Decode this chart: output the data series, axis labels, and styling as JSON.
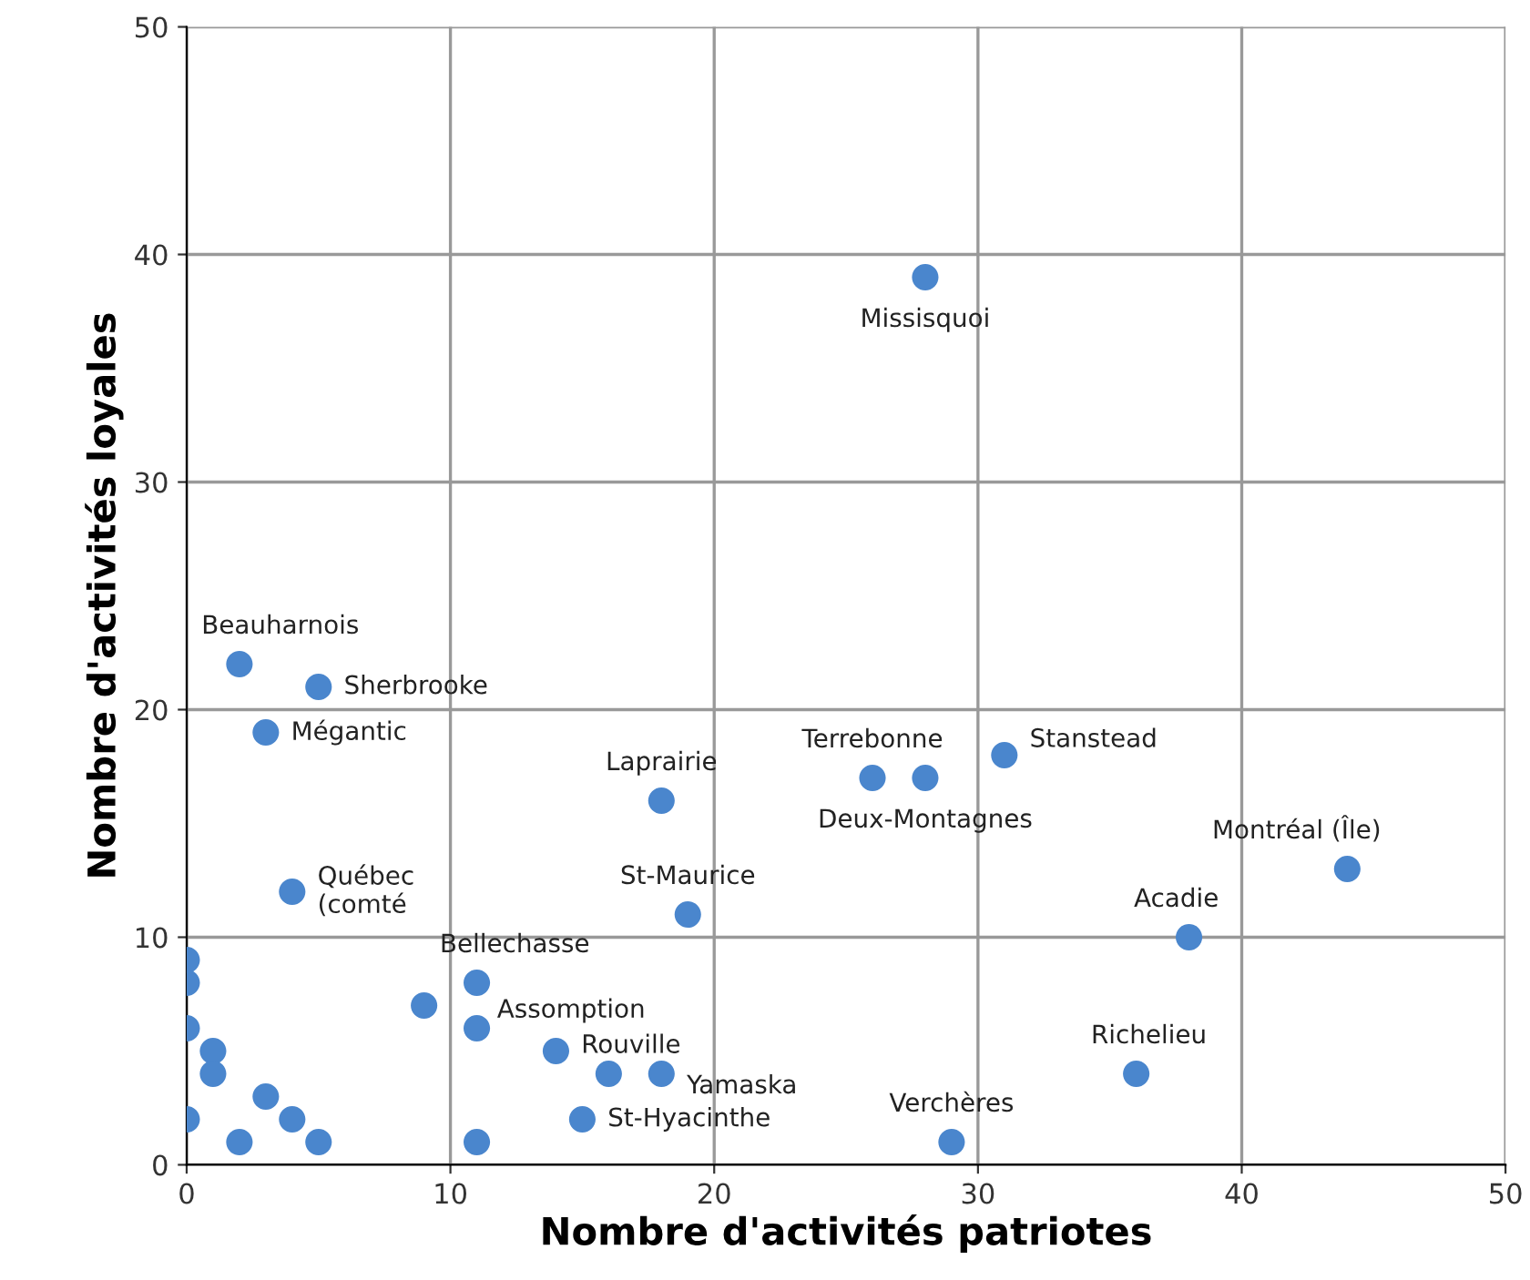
{
  "chart_data": {
    "type": "scatter",
    "xlabel": "Nombre d'activités patriotes",
    "ylabel": "Nombre d'activités loyales",
    "x": [
      28,
      2,
      5,
      3,
      18,
      26,
      28,
      31,
      44,
      4,
      19,
      38,
      11,
      11,
      14,
      18,
      15,
      36,
      29,
      0,
      0,
      0,
      0,
      1,
      1,
      2,
      3,
      4,
      5,
      9,
      11,
      16
    ],
    "series": [
      {
        "color": "#4a86cd",
        "values": [
          39,
          22,
          21,
          19,
          16,
          17,
          17,
          18,
          13,
          12,
          11,
          10,
          8,
          6,
          5,
          4,
          2,
          4,
          1,
          9,
          8,
          6,
          2,
          5,
          4,
          1,
          3,
          2,
          1,
          7,
          1,
          4
        ]
      }
    ],
    "annotations": [
      {
        "text": "Missisquoi",
        "x": 28,
        "y": 39
      },
      {
        "text": "Beauharnois",
        "x": 2,
        "y": 22
      },
      {
        "text": "Sherbrooke",
        "x": 5,
        "y": 21
      },
      {
        "text": "Mégantic",
        "x": 3,
        "y": 19
      },
      {
        "text": "Laprairie",
        "x": 18,
        "y": 16
      },
      {
        "text": "Terrebonne",
        "x": 26,
        "y": 17
      },
      {
        "text": "Deux-Montagnes",
        "x": 28,
        "y": 17
      },
      {
        "text": "Stanstead",
        "x": 31,
        "y": 18
      },
      {
        "text": "Montréal (Île)",
        "x": 44,
        "y": 13
      },
      {
        "text": "Québec\n(comté",
        "x": 4,
        "y": 12
      },
      {
        "text": "St-Maurice",
        "x": 19,
        "y": 11
      },
      {
        "text": "Acadie",
        "x": 38,
        "y": 10
      },
      {
        "text": "Bellechasse",
        "x": 11,
        "y": 8
      },
      {
        "text": "Assomption",
        "x": 11,
        "y": 6
      },
      {
        "text": "Rouville",
        "x": 14,
        "y": 5
      },
      {
        "text": "Yamaska",
        "x": 18,
        "y": 4
      },
      {
        "text": "St-Hyacinthe",
        "x": 15,
        "y": 2
      },
      {
        "text": "Richelieu",
        "x": 36,
        "y": 4
      },
      {
        "text": "Verchères",
        "x": 29,
        "y": 1
      }
    ],
    "xlim": [
      0,
      50
    ],
    "ylim": [
      0,
      50
    ],
    "xticks": [
      0,
      10,
      20,
      30,
      40,
      50
    ],
    "yticks": [
      0,
      10,
      20,
      30,
      40,
      50
    ],
    "grid": true,
    "marker": "circle",
    "legend": false
  }
}
